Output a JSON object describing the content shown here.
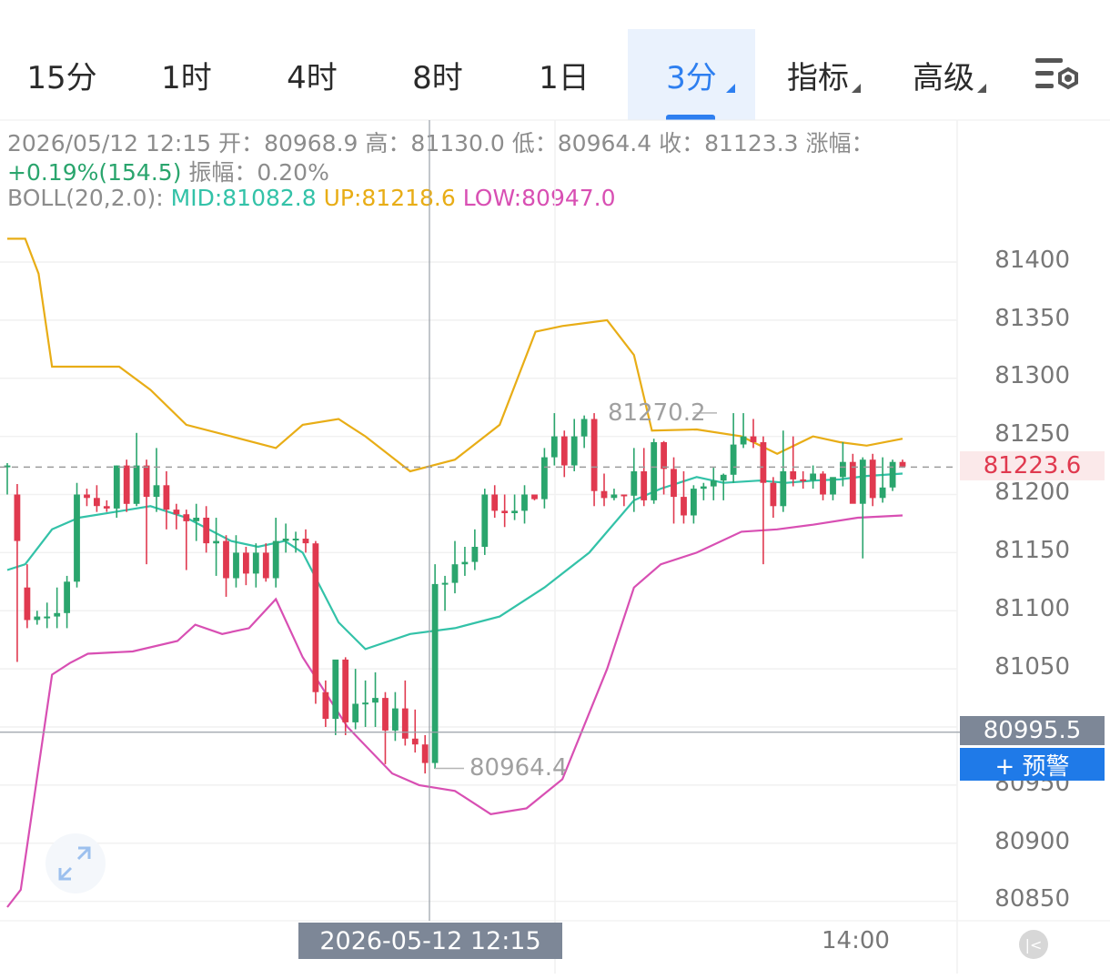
{
  "tabs": [
    {
      "label": "15分",
      "active": false,
      "dropdown": false
    },
    {
      "label": "1时",
      "active": false,
      "dropdown": false
    },
    {
      "label": "4时",
      "active": false,
      "dropdown": false
    },
    {
      "label": "8时",
      "active": false,
      "dropdown": false
    },
    {
      "label": "1日",
      "active": false,
      "dropdown": false
    },
    {
      "label": "3分",
      "active": true,
      "dropdown": true
    },
    {
      "label": "指标",
      "active": false,
      "dropdown": true
    },
    {
      "label": "高级",
      "active": false,
      "dropdown": true
    }
  ],
  "settings_icon": "chart-settings-icon",
  "info": {
    "date": "2026/05/12 12:15",
    "open_label": "开：",
    "open": "80968.9",
    "high_label": "高：",
    "high": "81130.0",
    "low_label": "低：",
    "low": "80964.4",
    "close_label": "收：",
    "close": "81123.3",
    "change_label": "涨幅：",
    "change": "+0.19%(154.5)",
    "amp_label": "振幅：",
    "amplitude": "0.20%",
    "boll_label": "BOLL(20,2.0):",
    "mid": "MID:81082.8",
    "up": "UP:81218.6",
    "low_band": "LOW:80947.0"
  },
  "chart_data": {
    "type": "candlestick",
    "ylim": [
      80830,
      81440
    ],
    "y_ticks": [
      "81400",
      "81350",
      "81300",
      "81250",
      "81200",
      "81150",
      "81100",
      "81050",
      "80950",
      "80900",
      "80850"
    ],
    "x_labels": [
      "14:00"
    ],
    "crosshair_time": "2026-05-12 12:15",
    "crosshair_price": "80995.5",
    "last_price": "81223.6",
    "max_marker": "81270.2",
    "min_marker": "80964.4",
    "alert_label": "+ 预警",
    "colors": {
      "up": "#2aa56d",
      "down": "#e0394f",
      "mid": "#33c2a8",
      "upper": "#e8ad16",
      "lower": "#d84fb3"
    },
    "candles": [
      [
        81224,
        81227,
        81200,
        81225
      ],
      [
        81200,
        81209,
        81056,
        81160
      ],
      [
        81120,
        81140,
        81085,
        81092
      ],
      [
        81092,
        81100,
        81088,
        81095
      ],
      [
        81095,
        81107,
        81085,
        81095
      ],
      [
        81095,
        81120,
        81085,
        81098
      ],
      [
        81098,
        81130,
        81085,
        81125
      ],
      [
        81125,
        81210,
        81120,
        81200
      ],
      [
        81200,
        81205,
        81190,
        81197
      ],
      [
        81197,
        81208,
        81185,
        81190
      ],
      [
        81190,
        81195,
        81185,
        81188
      ],
      [
        81188,
        81225,
        81180,
        81225
      ],
      [
        81225,
        81230,
        81185,
        81192
      ],
      [
        81192,
        81253,
        81190,
        81225
      ],
      [
        81225,
        81230,
        81140,
        81198
      ],
      [
        81198,
        81240,
        81185,
        81208
      ],
      [
        81208,
        81220,
        81170,
        81187
      ],
      [
        81187,
        81192,
        81170,
        81183
      ],
      [
        81183,
        81187,
        81135,
        81177
      ],
      [
        81177,
        81192,
        81160,
        81180
      ],
      [
        81180,
        81190,
        81150,
        81158
      ],
      [
        81158,
        81180,
        81130,
        81160
      ],
      [
        81160,
        81165,
        81112,
        81128
      ],
      [
        81128,
        81165,
        81120,
        81150
      ],
      [
        81150,
        81155,
        81122,
        81132
      ],
      [
        81132,
        81158,
        81120,
        81150
      ],
      [
        81150,
        81158,
        81125,
        81128
      ],
      [
        81128,
        81180,
        81120,
        81160
      ],
      [
        81160,
        81175,
        81150,
        81162
      ],
      [
        81162,
        81168,
        81150,
        81162
      ],
      [
        81162,
        81170,
        81150,
        81158
      ],
      [
        81158,
        81160,
        81020,
        81030
      ],
      [
        81030,
        81040,
        81000,
        81007
      ],
      [
        81007,
        81057,
        80993,
        81058
      ],
      [
        81058,
        81060,
        80993,
        81004
      ],
      [
        81004,
        81050,
        80998,
        81020
      ],
      [
        81020,
        81040,
        81000,
        81021
      ],
      [
        81021,
        81047,
        81000,
        81025
      ],
      [
        81025,
        81030,
        80968,
        80997
      ],
      [
        80997,
        81030,
        80988,
        81016
      ],
      [
        81016,
        81040,
        80984,
        80990
      ],
      [
        80990,
        81015,
        80978,
        80985
      ],
      [
        80985,
        80993,
        80960,
        80969
      ],
      [
        80969,
        81140,
        80964,
        81123
      ],
      [
        81123,
        81130,
        81100,
        81124
      ],
      [
        81124,
        81160,
        81115,
        81140
      ],
      [
        81140,
        81155,
        81130,
        81142
      ],
      [
        81142,
        81170,
        81135,
        81155
      ],
      [
        81155,
        81205,
        81148,
        81200
      ],
      [
        81200,
        81208,
        81180,
        81186
      ],
      [
        81186,
        81200,
        81172,
        81184
      ],
      [
        81184,
        81200,
        81178,
        81186
      ],
      [
        81186,
        81208,
        81175,
        81200
      ],
      [
        81200,
        81200,
        81195,
        81196
      ],
      [
        81196,
        81240,
        81188,
        81232
      ],
      [
        81232,
        81270,
        81225,
        81250
      ],
      [
        81250,
        81255,
        81215,
        81225
      ],
      [
        81225,
        81265,
        81220,
        81250
      ],
      [
        81250,
        81268,
        81240,
        81265
      ],
      [
        81265,
        81270,
        81190,
        81203
      ],
      [
        81203,
        81218,
        81190,
        81197
      ],
      [
        81197,
        81205,
        81195,
        81200
      ],
      [
        81200,
        81200,
        81190,
        81199
      ],
      [
        81199,
        81240,
        81185,
        81220
      ],
      [
        81220,
        81240,
        81190,
        81195
      ],
      [
        81195,
        81248,
        81192,
        81245
      ],
      [
        81245,
        81246,
        81200,
        81222
      ],
      [
        81222,
        81232,
        81175,
        81198
      ],
      [
        81198,
        81220,
        81175,
        81182
      ],
      [
        81182,
        81208,
        81175,
        81205
      ],
      [
        81205,
        81210,
        81195,
        81207
      ],
      [
        81207,
        81223,
        81195,
        81212
      ],
      [
        81212,
        81218,
        81195,
        81217
      ],
      [
        81217,
        81270,
        81210,
        81243
      ],
      [
        81243,
        81270,
        81240,
        81250
      ],
      [
        81250,
        81265,
        81240,
        81245
      ],
      [
        81245,
        81250,
        81140,
        81210
      ],
      [
        81210,
        81215,
        81180,
        81190
      ],
      [
        81190,
        81255,
        81185,
        81220
      ],
      [
        81220,
        81250,
        81207,
        81213
      ],
      [
        81213,
        81220,
        81205,
        81212
      ],
      [
        81212,
        81225,
        81205,
        81218
      ],
      [
        81218,
        81220,
        81195,
        81200
      ],
      [
        81200,
        81210,
        81195,
        81215
      ],
      [
        81215,
        81245,
        81207,
        81228
      ],
      [
        81228,
        81235,
        81193,
        81192
      ],
      [
        81192,
        81232,
        81145,
        81230
      ],
      [
        81230,
        81235,
        81190,
        81197
      ],
      [
        81197,
        81232,
        81193,
        81206
      ],
      [
        81206,
        81230,
        81203,
        81228
      ],
      [
        81228,
        81230,
        81223,
        81224
      ]
    ],
    "boll_mid": [
      [
        0,
        81135
      ],
      [
        0.02,
        81140
      ],
      [
        0.05,
        81170
      ],
      [
        0.08,
        81180
      ],
      [
        0.12,
        81185
      ],
      [
        0.16,
        81190
      ],
      [
        0.2,
        81180
      ],
      [
        0.25,
        81160
      ],
      [
        0.28,
        81155
      ],
      [
        0.31,
        81160
      ],
      [
        0.33,
        81150
      ],
      [
        0.37,
        81090
      ],
      [
        0.4,
        81067
      ],
      [
        0.45,
        81080
      ],
      [
        0.5,
        81085
      ],
      [
        0.55,
        81095
      ],
      [
        0.6,
        81120
      ],
      [
        0.65,
        81150
      ],
      [
        0.7,
        81195
      ],
      [
        0.73,
        81205
      ],
      [
        0.77,
        81215
      ],
      [
        0.8,
        81210
      ],
      [
        0.84,
        81212
      ],
      [
        0.87,
        81210
      ],
      [
        0.9,
        81212
      ],
      [
        0.93,
        81213
      ],
      [
        0.96,
        81216
      ],
      [
        1,
        81218
      ]
    ],
    "boll_upper": [
      [
        0,
        81420
      ],
      [
        0.02,
        81420
      ],
      [
        0.035,
        81390
      ],
      [
        0.05,
        81310
      ],
      [
        0.1,
        81310
      ],
      [
        0.125,
        81310
      ],
      [
        0.16,
        81290
      ],
      [
        0.2,
        81260
      ],
      [
        0.25,
        81250
      ],
      [
        0.3,
        81240
      ],
      [
        0.33,
        81260
      ],
      [
        0.37,
        81265
      ],
      [
        0.4,
        81250
      ],
      [
        0.45,
        81220
      ],
      [
        0.5,
        81230
      ],
      [
        0.55,
        81260
      ],
      [
        0.59,
        81340
      ],
      [
        0.62,
        81345
      ],
      [
        0.67,
        81350
      ],
      [
        0.7,
        81320
      ],
      [
        0.72,
        81255
      ],
      [
        0.77,
        81256
      ],
      [
        0.82,
        81250
      ],
      [
        0.86,
        81235
      ],
      [
        0.9,
        81250
      ],
      [
        0.93,
        81245
      ],
      [
        0.96,
        81242
      ],
      [
        1,
        81248
      ]
    ],
    "boll_lower": [
      [
        0,
        80845
      ],
      [
        0.015,
        80860
      ],
      [
        0.05,
        81045
      ],
      [
        0.07,
        81055
      ],
      [
        0.09,
        81063
      ],
      [
        0.14,
        81065
      ],
      [
        0.19,
        81074
      ],
      [
        0.21,
        81088
      ],
      [
        0.24,
        81080
      ],
      [
        0.27,
        81085
      ],
      [
        0.3,
        81110
      ],
      [
        0.33,
        81060
      ],
      [
        0.38,
        81000
      ],
      [
        0.43,
        80960
      ],
      [
        0.46,
        80950
      ],
      [
        0.5,
        80945
      ],
      [
        0.54,
        80925
      ],
      [
        0.58,
        80930
      ],
      [
        0.62,
        80955
      ],
      [
        0.67,
        81050
      ],
      [
        0.7,
        81120
      ],
      [
        0.73,
        81140
      ],
      [
        0.77,
        81150
      ],
      [
        0.82,
        81168
      ],
      [
        0.86,
        81170
      ],
      [
        0.9,
        81174
      ],
      [
        0.95,
        81180
      ],
      [
        1,
        81182
      ]
    ]
  }
}
